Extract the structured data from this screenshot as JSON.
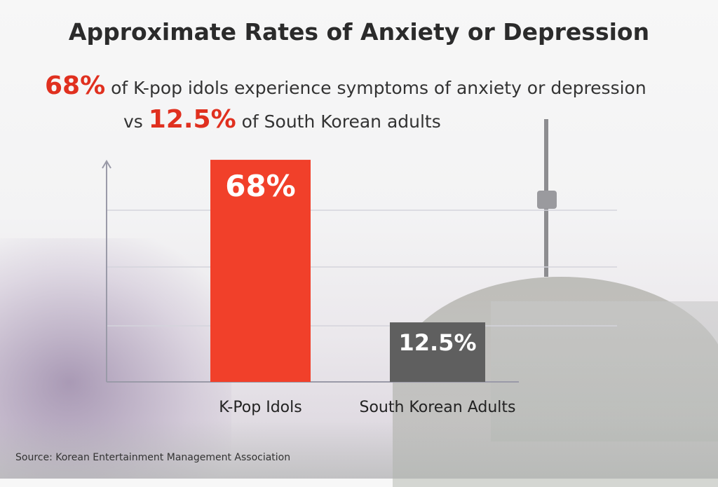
{
  "title": "Approximate Rates of Anxiety or Depression",
  "subtitle": {
    "line1_highlight": "68%",
    "line1_text": " of K-pop idols experience symptoms of anxiety or depression",
    "line2_prefix": "vs ",
    "line2_highlight": "12.5%",
    "line2_text": " of South Korean adults"
  },
  "source": "Source: Korean Entertainment Management Association",
  "colors": {
    "highlight": "#e0301f",
    "idols_bar": "#f1402a",
    "adults_bar": "#5f5f5f",
    "axis": "#9a9aa8",
    "grid": "#d4d4dc"
  },
  "chart_data": {
    "type": "bar",
    "title": "Approximate Rates of Anxiety or Depression",
    "categories": [
      "K-Pop Idols",
      "South Korean Adults"
    ],
    "values": [
      68,
      12.5
    ],
    "data_labels": [
      "68%",
      "12.5%"
    ],
    "unit": "%",
    "grid": true,
    "ytick_labels": false
  }
}
